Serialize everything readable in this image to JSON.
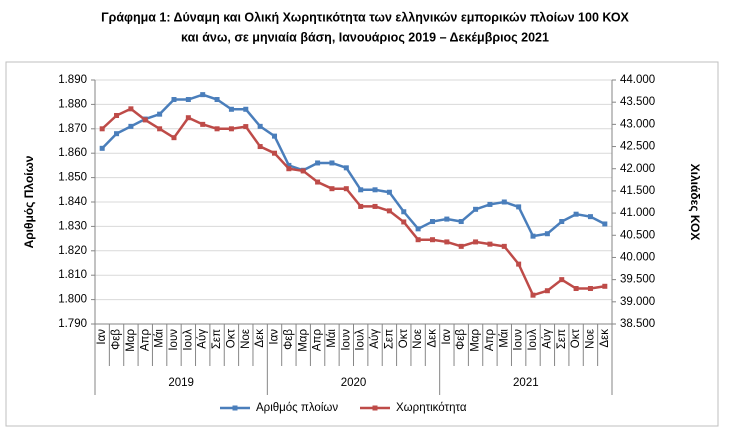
{
  "chart_data": {
    "type": "line",
    "title": [
      "Γράφημα 1: Δύναμη και Ολική Χωρητικότητα των ελληνικών εμπορικών πλοίων 100 ΚΟΧ",
      "και άνω, σε μηνιαία βάση, Ιανουάριος 2019 – Δεκέμβριος 2021"
    ],
    "y_label": "Αριθμός Πλοίων",
    "y2_label": "Χιλιάδες ΚΟΧ",
    "categories": [
      "Ιαν",
      "Φεβ",
      "Μαρ",
      "Απρ",
      "Μάι",
      "Ιουν",
      "Ιουλ",
      "Αύγ",
      "Σεπ",
      "Οκτ",
      "Νοε",
      "Δεκ",
      "Ιαν",
      "Φεβ",
      "Μαρ",
      "Απρ",
      "Μάι",
      "Ιουν",
      "Ιουλ",
      "Αύγ",
      "Σεπ",
      "Οκτ",
      "Νοε",
      "Δεκ",
      "Ιαν",
      "Φεβ",
      "Μαρ",
      "Απρ",
      "Μάι",
      "Ιουν",
      "Ιουλ",
      "Αύγ",
      "Σεπ",
      "Οκτ",
      "Νοε",
      "Δεκ"
    ],
    "category_groups": [
      "2019",
      "2020",
      "2021"
    ],
    "ylim": [
      1790,
      1890
    ],
    "yticks": [
      {
        "value": 1790,
        "label": "1.790"
      },
      {
        "value": 1800,
        "label": "1.800"
      },
      {
        "value": 1810,
        "label": "1.810"
      },
      {
        "value": 1820,
        "label": "1.820"
      },
      {
        "value": 1830,
        "label": "1.830"
      },
      {
        "value": 1840,
        "label": "1.840"
      },
      {
        "value": 1850,
        "label": "1.850"
      },
      {
        "value": 1860,
        "label": "1.860"
      },
      {
        "value": 1870,
        "label": "1.870"
      },
      {
        "value": 1880,
        "label": "1.880"
      },
      {
        "value": 1890,
        "label": "1.890"
      }
    ],
    "y2lim": [
      38500,
      44000
    ],
    "y2ticks": [
      {
        "value": 38500,
        "label": "38.500"
      },
      {
        "value": 39000,
        "label": "39.000"
      },
      {
        "value": 39500,
        "label": "39.500"
      },
      {
        "value": 40000,
        "label": "40.000"
      },
      {
        "value": 40500,
        "label": "40.500"
      },
      {
        "value": 41000,
        "label": "41.000"
      },
      {
        "value": 41500,
        "label": "41.500"
      },
      {
        "value": 42000,
        "label": "42.000"
      },
      {
        "value": 42500,
        "label": "42.500"
      },
      {
        "value": 43000,
        "label": "43.000"
      },
      {
        "value": 43500,
        "label": "43.500"
      },
      {
        "value": 44000,
        "label": "44.000"
      }
    ],
    "legend_position": "bottom",
    "series": [
      {
        "name": "Αριθμός πλοίων",
        "color": "#4a7ebb",
        "axis": "y",
        "values": [
          1862,
          1868,
          1871,
          1874,
          1876,
          1882,
          1882,
          1884,
          1882,
          1878,
          1878,
          1871,
          1867,
          1855,
          1853,
          1856,
          1856,
          1854,
          1845,
          1845,
          1844,
          1836,
          1829,
          1832,
          1833,
          1832,
          1837,
          1839,
          1840,
          1838,
          1826,
          1827,
          1832,
          1835,
          1834,
          1831
        ]
      },
      {
        "name": "Χωρητικότητα",
        "color": "#be4b48",
        "axis": "y2",
        "values": [
          42900,
          43200,
          43350,
          43100,
          42900,
          42700,
          43150,
          43000,
          42900,
          42900,
          42950,
          42500,
          42350,
          42000,
          41950,
          41700,
          41550,
          41550,
          41150,
          41150,
          41050,
          40800,
          40400,
          40400,
          40350,
          40250,
          40350,
          40300,
          40250,
          39850,
          39150,
          39250,
          39500,
          39300,
          39300,
          39350
        ]
      }
    ]
  }
}
